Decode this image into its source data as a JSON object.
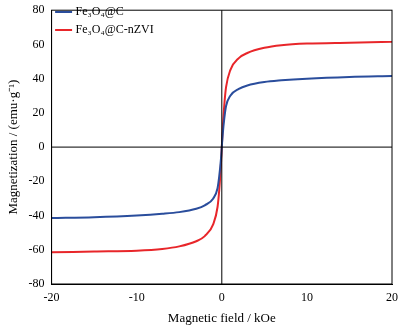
{
  "chart_data": {
    "type": "line",
    "x_label": "Magnetic field / kOe",
    "y_label": "Magnetization / (emu·g⁻¹)",
    "x": [
      -20,
      -15,
      -10,
      -7,
      -5,
      -3,
      -2,
      -1,
      -0.5,
      -0.3,
      -0.1,
      0,
      0.1,
      0.3,
      0.5,
      1,
      2,
      3,
      5,
      7,
      10,
      15,
      20
    ],
    "series": [
      {
        "name": "Fe₃O₄@C",
        "color": "#2a4d9c",
        "values": [
          -41.5,
          -41,
          -40,
          -39,
          -38,
          -36,
          -34,
          -30,
          -24,
          -17,
          -7,
          0,
          7,
          17,
          24,
          30,
          34,
          36,
          38,
          39,
          40,
          41,
          41.5
        ]
      },
      {
        "name": "Fe₃O₄@C-nZVI",
        "color": "#e8262a",
        "values": [
          -61.5,
          -61,
          -60.5,
          -59.5,
          -58,
          -55,
          -52,
          -45,
          -35,
          -25,
          -10,
          0,
          10,
          25,
          35,
          45,
          52,
          55,
          58,
          59.5,
          60.5,
          61,
          61.5
        ]
      }
    ],
    "xlim": [
      -20,
      20
    ],
    "xticks": [
      -20,
      -10,
      0,
      10,
      20
    ],
    "ylim": [
      -80,
      80
    ],
    "yticks": [
      -80,
      -60,
      -40,
      -20,
      0,
      20,
      40,
      60,
      80
    ],
    "grid": false,
    "legend": "top-left"
  }
}
